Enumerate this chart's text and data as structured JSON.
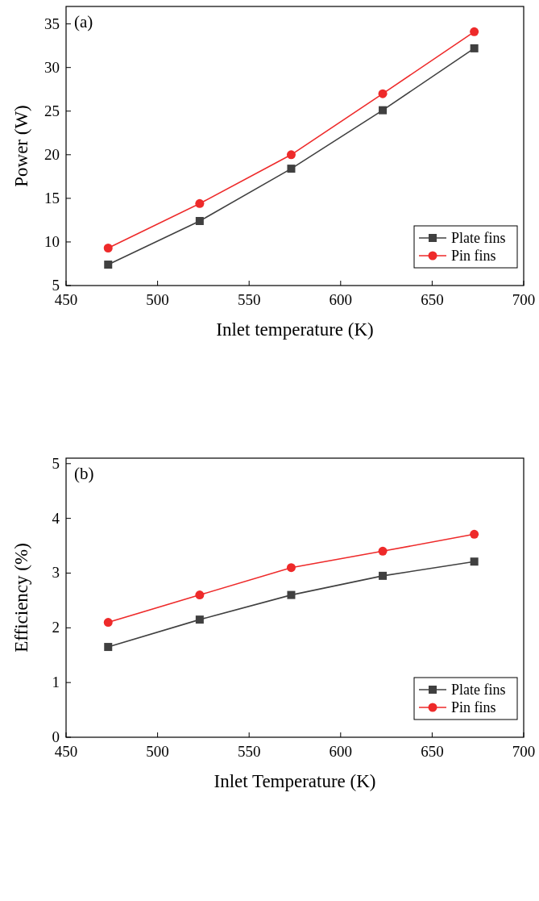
{
  "chart_data": [
    {
      "type": "line",
      "annotations": [
        "(a)"
      ],
      "xlabel": "Inlet temperature (K)",
      "ylabel": "Power (W)",
      "x": [
        473,
        523,
        573,
        623,
        673
      ],
      "xlim": [
        450,
        700
      ],
      "xticks": [
        450,
        500,
        550,
        600,
        650,
        700
      ],
      "ylim": [
        5,
        37
      ],
      "yticks": [
        5,
        10,
        15,
        20,
        25,
        30,
        35
      ],
      "legend": "bottom right",
      "grid": false,
      "series": [
        {
          "name": "Plate fins",
          "color": "#404040",
          "marker": "square",
          "values": [
            7.4,
            12.4,
            18.4,
            25.1,
            32.2
          ]
        },
        {
          "name": "Pin fins",
          "color": "#ee2a2a",
          "marker": "circle",
          "values": [
            9.3,
            14.4,
            20.0,
            27.0,
            34.1
          ]
        }
      ]
    },
    {
      "type": "line",
      "annotations": [
        "(b)"
      ],
      "xlabel": "Inlet Temperature (K)",
      "ylabel": "Efficiency (%)",
      "x": [
        473,
        523,
        573,
        623,
        673
      ],
      "xlim": [
        450,
        700
      ],
      "xticks": [
        450,
        500,
        550,
        600,
        650,
        700
      ],
      "ylim": [
        0,
        5.1
      ],
      "yticks": [
        0,
        1,
        2,
        3,
        4,
        5
      ],
      "legend": "bottom right",
      "grid": false,
      "series": [
        {
          "name": "Plate fins",
          "color": "#404040",
          "marker": "square",
          "values": [
            1.65,
            2.15,
            2.6,
            2.95,
            3.21
          ]
        },
        {
          "name": "Pin fins",
          "color": "#ee2a2a",
          "marker": "circle",
          "values": [
            2.1,
            2.6,
            3.1,
            3.4,
            3.71
          ]
        }
      ]
    }
  ]
}
